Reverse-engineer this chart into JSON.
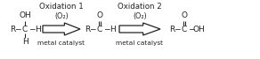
{
  "title1": "Oxidation 1",
  "title2": "Oxidation 2",
  "arrow1_label_top": "(O₂)",
  "arrow1_label_bot": "metal catalyst",
  "arrow2_label_top": "(O₂)",
  "arrow2_label_bot": "metal catalyst",
  "bg_color": "#ffffff",
  "text_color": "#222222",
  "fig_width": 2.92,
  "fig_height": 0.67,
  "dpi": 100
}
